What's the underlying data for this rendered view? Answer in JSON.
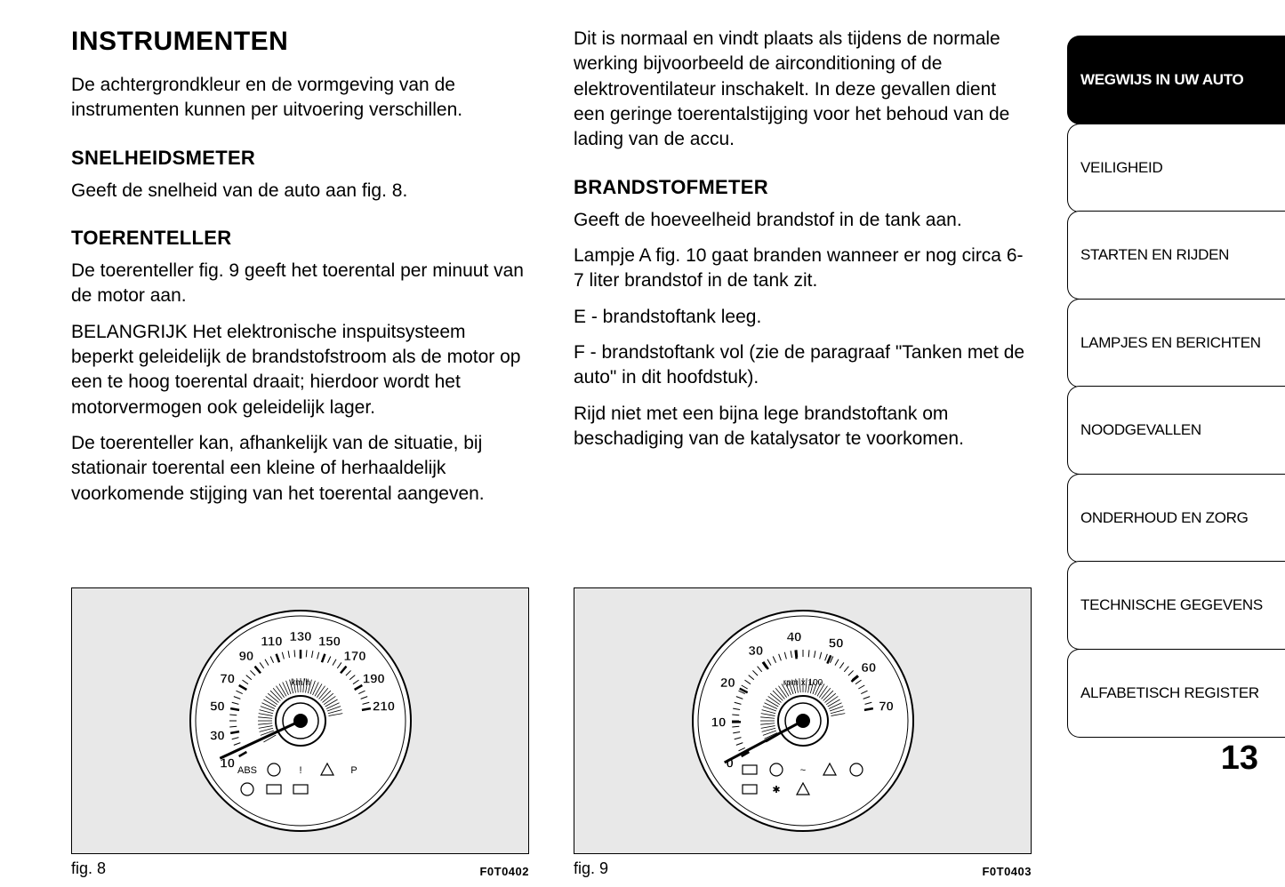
{
  "page_number": "13",
  "left_column": {
    "title": "INSTRUMENTEN",
    "intro": "De achtergrondkleur en de vormgeving van de instrumenten kunnen per uitvoering verschillen.",
    "sec1_title": "SNELHEIDSMETER",
    "sec1_p1": "Geeft de snelheid van de auto aan fig. 8.",
    "sec2_title": "TOERENTELLER",
    "sec2_p1": "De toerenteller fig. 9 geeft het toerental per minuut van de motor aan.",
    "sec2_p2": "BELANGRIJK Het elektronische inspuitsysteem beperkt geleidelijk de brandstofstroom als de motor op een te hoog toerental draait; hierdoor wordt het motorvermogen ook geleidelijk lager.",
    "sec2_p3": "De toerenteller kan, afhankelijk van de situatie, bij stationair toerental een kleine of herhaaldelijk voorkomende stijging van het toerental aangeven.",
    "fig_label": "fig. 8",
    "fig_code": "F0T0402"
  },
  "right_column": {
    "p1": "Dit is normaal en vindt plaats als tijdens de normale werking bijvoorbeeld de airconditioning of de elektroventilateur inschakelt. In deze gevallen dient een geringe toerentalstijging voor het behoud van de lading van de accu.",
    "sec1_title": "BRANDSTOFMETER",
    "sec1_p1": "Geeft de hoeveelheid brandstof in de tank aan.",
    "sec1_p2": "Lampje A fig. 10 gaat branden wanneer er nog circa 6-7 liter brandstof in de tank zit.",
    "sec1_p3": "E - brandstoftank leeg.",
    "sec1_p4": "F - brandstoftank vol (zie de paragraaf \"Tanken met de auto\" in dit hoofdstuk).",
    "sec1_p5": "Rijd niet met een bijna lege brandstoftank om beschadiging van de katalysator te voorkomen.",
    "fig_label": "fig. 9",
    "fig_code": "F0T0403"
  },
  "tabs": [
    {
      "label": "WEGWIJS IN UW AUTO",
      "active": true
    },
    {
      "label": "VEILIGHEID",
      "active": false
    },
    {
      "label": "STARTEN EN RIJDEN",
      "active": false
    },
    {
      "label": "LAMPJES EN BERICHTEN",
      "active": false
    },
    {
      "label": "NOODGEVALLEN",
      "active": false
    },
    {
      "label": "ONDERHOUD EN ZORG",
      "active": false
    },
    {
      "label": "TECHNISCHE GEGEVENS",
      "active": false
    },
    {
      "label": "ALFABETISCH REGISTER",
      "active": false
    }
  ],
  "speedometer": {
    "unit": "km/h",
    "labels": [
      "10",
      "30",
      "50",
      "70",
      "90",
      "110",
      "130",
      "150",
      "170",
      "190",
      "210"
    ],
    "angles": [
      210,
      190,
      170,
      150,
      130,
      110,
      90,
      70,
      50,
      30,
      10
    ],
    "radius": 95,
    "tick_inner": 70,
    "tick_outer": 80,
    "minor_inner": 72,
    "minor_outer": 80,
    "needle_angle": 205,
    "stroke": "#000000",
    "bg": "#ffffff"
  },
  "tachometer": {
    "unit": "rpm x 100",
    "labels": [
      "0",
      "10",
      "20",
      "30",
      "40",
      "50",
      "60",
      "70"
    ],
    "angles": [
      210,
      181,
      153,
      124,
      96,
      67,
      39,
      10
    ],
    "radius": 95,
    "tick_inner": 70,
    "tick_outer": 80,
    "minor_inner": 72,
    "minor_outer": 80,
    "needle_angle": 208,
    "stroke": "#000000",
    "bg": "#ffffff"
  }
}
